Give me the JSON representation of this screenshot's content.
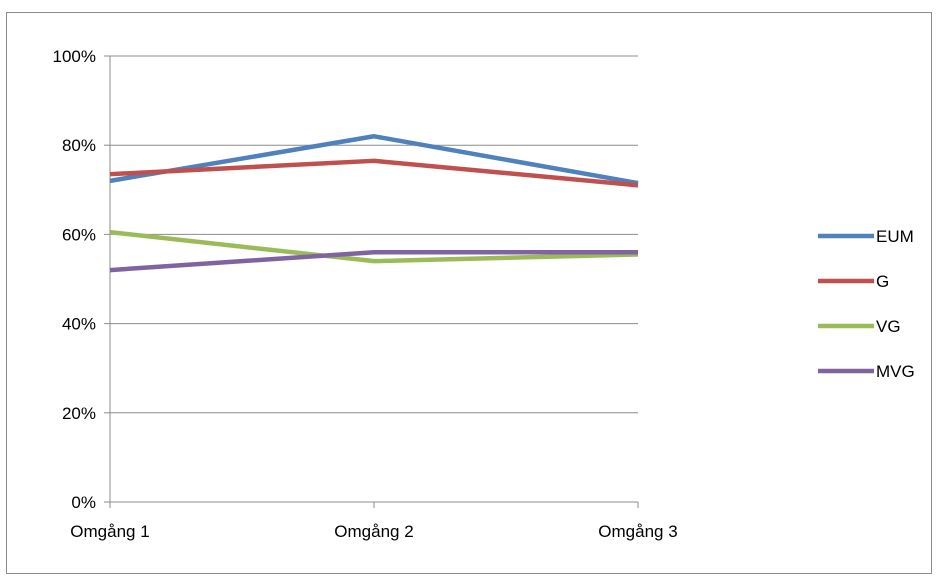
{
  "chart_data": {
    "type": "line",
    "title": "",
    "xlabel": "",
    "ylabel": "",
    "categories": [
      "Omgång 1",
      "Omgång 2",
      "Omgång 3"
    ],
    "ylim": [
      0,
      100
    ],
    "yticks": [
      0,
      20,
      40,
      60,
      80,
      100
    ],
    "ytick_labels": [
      "0%",
      "20%",
      "40%",
      "60%",
      "80%",
      "100%"
    ],
    "grid": true,
    "legend_position": "right",
    "series": [
      {
        "name": "EUM",
        "color": "#4f81bd",
        "values": [
          72,
          82,
          71.5
        ]
      },
      {
        "name": "G",
        "color": "#c0504d",
        "values": [
          73.5,
          76.5,
          71
        ]
      },
      {
        "name": "VG",
        "color": "#9bbb59",
        "values": [
          60.5,
          54,
          55.5
        ]
      },
      {
        "name": "MVG",
        "color": "#8064a2",
        "values": [
          52,
          56,
          56
        ]
      }
    ]
  }
}
